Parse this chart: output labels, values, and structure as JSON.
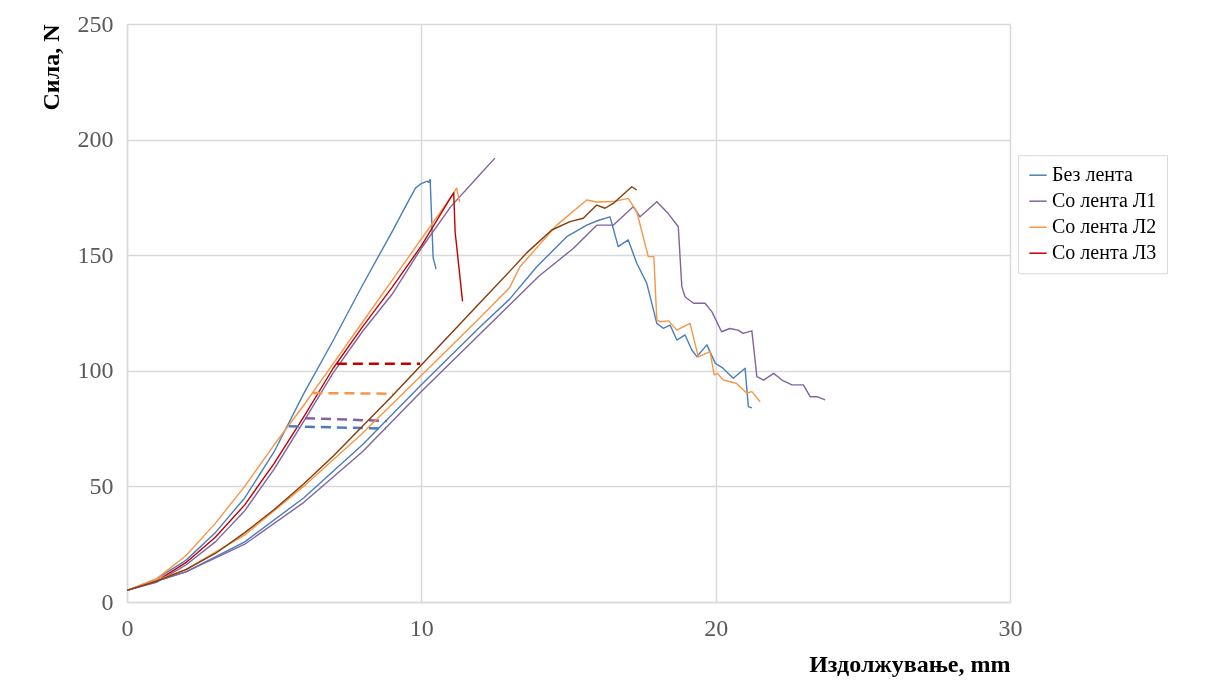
{
  "chart_data": {
    "type": "line",
    "xlabel": "Издолжување, mm",
    "ylabel": "Сила, N",
    "xlim": [
      0,
      30
    ],
    "xticks": [
      0,
      10,
      20,
      30
    ],
    "ylim": [
      0,
      250
    ],
    "yticks": [
      0,
      50,
      100,
      150,
      200,
      250
    ],
    "grid": true,
    "legend": "right",
    "marker": "none",
    "series": [
      {
        "name": "Без лента",
        "color": "#4a7ebb",
        "x": [
          0,
          1,
          2,
          3,
          4,
          5,
          6,
          7,
          8,
          9,
          9.5,
          9.8,
          10,
          10.2,
          10.25,
          10.3,
          10.4,
          10.5
        ],
        "values": [
          5,
          10,
          18,
          30,
          45,
          65,
          90,
          113,
          137,
          160,
          172,
          179,
          181,
          182,
          181.5,
          182.7,
          149,
          144
        ]
      },
      {
        "name": "Со лента Л1",
        "color": "#8064a2",
        "x": [
          0,
          1,
          2,
          3,
          4,
          5,
          6,
          7,
          8,
          9,
          10,
          11,
          12,
          12.5
        ],
        "values": [
          5,
          8.5,
          16,
          26,
          39.5,
          57.5,
          78,
          99,
          117,
          133,
          153,
          171,
          185,
          192
        ]
      },
      {
        "name": "Со лента Л2",
        "color": "#f79646",
        "x": [
          0,
          1,
          2,
          3,
          4,
          5,
          6,
          7,
          8,
          9,
          10,
          11,
          11.2,
          11.3
        ],
        "values": [
          5,
          10,
          20,
          34,
          50,
          68,
          85,
          103,
          121,
          139,
          157,
          175,
          179,
          173
        ]
      },
      {
        "name": "Со лента Л3",
        "color": "#c00000",
        "x": [
          0,
          1,
          2,
          3,
          4,
          5,
          6,
          7,
          8,
          9,
          10,
          11,
          11.1,
          11.15,
          11.2,
          11.4
        ],
        "values": [
          5,
          9,
          17,
          28,
          42,
          60,
          80,
          101,
          119,
          136,
          154,
          175,
          177,
          159.6,
          154,
          130
        ]
      },
      {
        "color": "#4a7ebb",
        "line_style": "dashed",
        "x": [
          5.5,
          8.8
        ],
        "values": [
          76,
          75
        ]
      },
      {
        "color": "#8064a2",
        "line_style": "dashed",
        "x": [
          6.05,
          8.83
        ],
        "values": [
          79.5,
          78.3
        ]
      },
      {
        "color": "#f79646",
        "line_style": "dashed",
        "x": [
          6.3,
          9.04
        ],
        "values": [
          90.4,
          90.1
        ]
      },
      {
        "color": "#c00000",
        "line_style": "dashed",
        "x": [
          7.13,
          9.96
        ],
        "values": [
          103,
          103
        ]
      },
      {
        "color": "#4a7ebb",
        "x": [
          0,
          2,
          4,
          6,
          8,
          10,
          12,
          13,
          13.92,
          14.94,
          15.62,
          16.0,
          16.41,
          16.69,
          17.03,
          17.32,
          17.66,
          18.0,
          18.22,
          18.45,
          18.68,
          18.96,
          19.19,
          19.36,
          19.7,
          19.99,
          20.21,
          20.6,
          21.0,
          21.11,
          21.23
        ],
        "values": [
          5,
          13,
          26,
          45,
          68,
          94,
          119,
          131,
          145,
          158,
          163,
          165,
          166.6,
          153.7,
          156.6,
          146.5,
          137.8,
          120.5,
          118.4,
          119.8,
          113.3,
          115.5,
          109,
          106.1,
          111.2,
          103.2,
          101.5,
          96.8,
          101.1,
          84.5,
          84
        ]
      },
      {
        "color": "#8064a2",
        "x": [
          0,
          2,
          4,
          6,
          8,
          10,
          12,
          14,
          15.17,
          15.96,
          16.52,
          17.2,
          17.43,
          18.0,
          18.39,
          18.73,
          18.85,
          18.96,
          19.02,
          19.25,
          19.64,
          19.87,
          20.2,
          20.48,
          20.76,
          20.93,
          21.23,
          21.4,
          21.63,
          21.97,
          22.25,
          22.59,
          22.98,
          23.21,
          23.44,
          23.72
        ],
        "values": [
          5,
          13,
          25,
          43,
          65,
          91,
          116,
          141,
          153,
          163,
          163,
          171,
          166.6,
          173.1,
          168,
          162.3,
          136.4,
          132,
          131.4,
          129.2,
          129.2,
          125.6,
          116.9,
          118.3,
          117.6,
          116.2,
          117.3,
          97.5,
          96,
          98.9,
          96,
          93.9,
          93.9,
          88.8,
          88.8,
          87.4
        ]
      },
      {
        "color": "#f79646",
        "x": [
          0,
          2,
          4,
          6,
          8,
          10,
          12,
          13,
          13.35,
          14.6,
          15.62,
          15.96,
          16.52,
          17.03,
          17.32,
          17.71,
          17.9,
          18.0,
          18.11,
          18.4,
          18.68,
          19.13,
          19.41,
          19.81,
          19.95,
          20.06,
          20.26,
          20.7,
          21.06,
          21.23,
          21.51
        ],
        "values": [
          5,
          14,
          29,
          50,
          73,
          98,
          123,
          136,
          145,
          163,
          173.9,
          173,
          173.2,
          174.6,
          168.8,
          149.4,
          149.4,
          122,
          121.2,
          121.6,
          117.6,
          120.5,
          106,
          108.3,
          98.2,
          98.9,
          96,
          94.6,
          90.3,
          91,
          86.6
        ]
      },
      {
        "color": "#843c0c",
        "x": [
          0,
          1,
          2,
          3,
          4,
          5,
          6,
          7,
          8,
          9,
          10,
          11,
          12,
          13,
          13.58,
          14.43,
          15.05,
          15.5,
          15.96,
          16.24,
          16.52,
          17.15,
          17.32
        ],
        "values": [
          5,
          9,
          14,
          21,
          30,
          40,
          51,
          63,
          76,
          89,
          102.5,
          116,
          129.5,
          143,
          151,
          160.9,
          164.5,
          166,
          171.7,
          170.3,
          172.4,
          179.6,
          178.2
        ]
      }
    ]
  }
}
